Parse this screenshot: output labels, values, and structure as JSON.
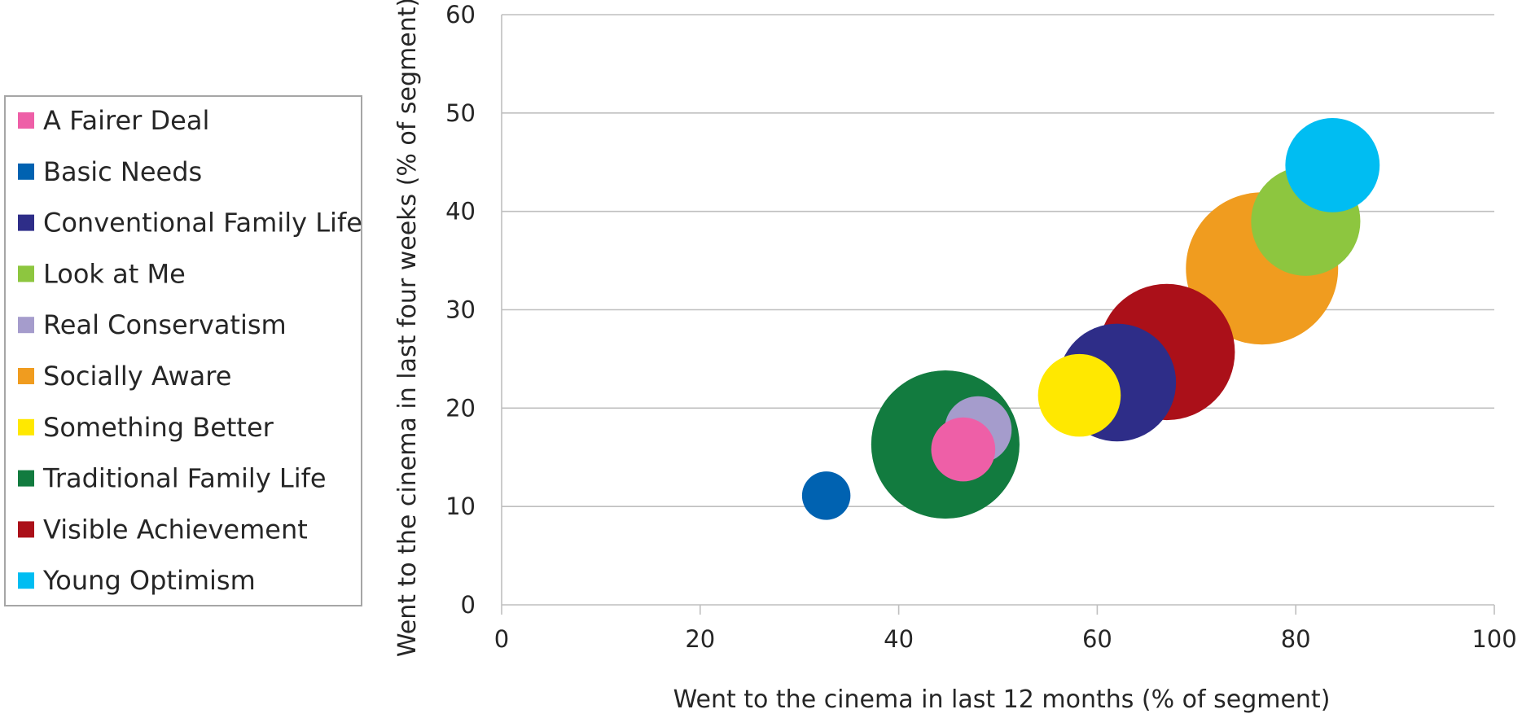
{
  "chart_data": {
    "type": "bubble",
    "title": "",
    "xlabel": "Went to the cinema in last 12 months (% of segment)",
    "ylabel": "Went to the cinema in last four weeks (% of segment)",
    "xlim": [
      0,
      100
    ],
    "ylim": [
      0,
      60
    ],
    "xticks": [
      "0",
      "20",
      "40",
      "60",
      "80",
      "100"
    ],
    "yticks": [
      "0",
      "10",
      "20",
      "30",
      "40",
      "50",
      "60"
    ],
    "grid": "horizontal",
    "legend": "left",
    "series": [
      {
        "name": "A Fairer Deal",
        "color": "#ee5fa7",
        "x": 46.5,
        "y": 15.8,
        "size": 4.2
      },
      {
        "name": "Basic Needs",
        "color": "#0062b1",
        "x": 32.7,
        "y": 11.1,
        "size": 2.4
      },
      {
        "name": "Conventional Family Life",
        "color": "#2e2d88",
        "x": 62.0,
        "y": 22.6,
        "size": 14.2
      },
      {
        "name": "Look at Me",
        "color": "#8dc63f",
        "x": 81.0,
        "y": 39.0,
        "size": 12.2
      },
      {
        "name": "Real Conservatism",
        "color": "#a59ccc",
        "x": 48.0,
        "y": 17.8,
        "size": 4.6
      },
      {
        "name": "Socially Aware",
        "color": "#f09c1f",
        "x": 76.6,
        "y": 34.2,
        "size": 23.7
      },
      {
        "name": "Something Better",
        "color": "#ffe800",
        "x": 58.2,
        "y": 21.3,
        "size": 7.0
      },
      {
        "name": "Traditional Family Life",
        "color": "#127b3f",
        "x": 44.7,
        "y": 16.3,
        "size": 22.5
      },
      {
        "name": "Visible Achievement",
        "color": "#ab1019",
        "x": 67.0,
        "y": 25.7,
        "size": 19.0
      },
      {
        "name": "Young Optimism",
        "color": "#00bdf2",
        "x": 83.7,
        "y": 44.7,
        "size": 9.1
      }
    ]
  }
}
